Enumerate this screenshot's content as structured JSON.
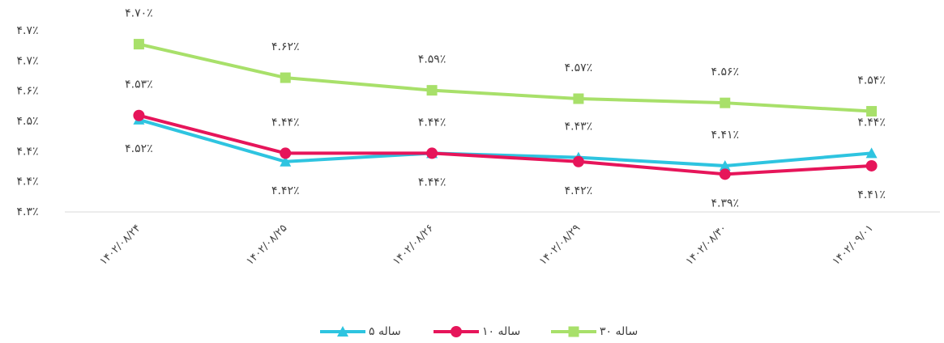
{
  "chart_data": {
    "type": "line",
    "categories": [
      "۱۴۰۲/۰۸/۲۴",
      "۱۴۰۲/۰۸/۲۵",
      "۱۴۰۲/۰۸/۲۶",
      "۱۴۰۲/۰۸/۲۹",
      "۱۴۰۲/۰۸/۳۰",
      "۱۴۰۲/۰۹/۰۱"
    ],
    "series": [
      {
        "name": "۵ ساله",
        "color": "#2ec4e0",
        "marker": "triangle",
        "values": [
          4.52,
          4.42,
          4.44,
          4.43,
          4.41,
          4.44
        ],
        "value_labels": [
          "۴.۵۲٪",
          "۴.۴۲٪",
          "۴.۴۴٪",
          "۴.۴۳٪",
          "۴.۴۱٪",
          "۴.۴۴٪"
        ]
      },
      {
        "name": "۱۰ ساله",
        "color": "#e6155a",
        "marker": "circle",
        "values": [
          4.53,
          4.44,
          4.44,
          4.42,
          4.39,
          4.41
        ],
        "value_labels": [
          "۴.۵۳٪",
          "۴.۴۴٪",
          "۴.۴۴٪",
          "۴.۴۲٪",
          "۴.۳۹٪",
          "۴.۴۱٪"
        ]
      },
      {
        "name": "۳۰ ساله",
        "color": "#a8e06a",
        "marker": "square",
        "values": [
          4.7,
          4.62,
          4.59,
          4.57,
          4.56,
          4.54
        ],
        "value_labels": [
          "۴.۷۰٪",
          "۴.۶۲٪",
          "۴.۵۹٪",
          "۴.۵۷٪",
          "۴.۵۶٪",
          "۴.۵۴٪"
        ]
      }
    ],
    "ylim": [
      4.3,
      4.732
    ],
    "yticks": [
      {
        "value": 4.3,
        "label": "۴.۳٪"
      },
      {
        "value": 4.372,
        "label": "۴.۴٪"
      },
      {
        "value": 4.444,
        "label": "۴.۴٪"
      },
      {
        "value": 4.516,
        "label": "۴.۵٪"
      },
      {
        "value": 4.588,
        "label": "۴.۶٪"
      },
      {
        "value": 4.66,
        "label": "۴.۷٪"
      },
      {
        "value": 4.732,
        "label": "۴.۷٪"
      }
    ],
    "grid": false,
    "legend": "bottom"
  }
}
